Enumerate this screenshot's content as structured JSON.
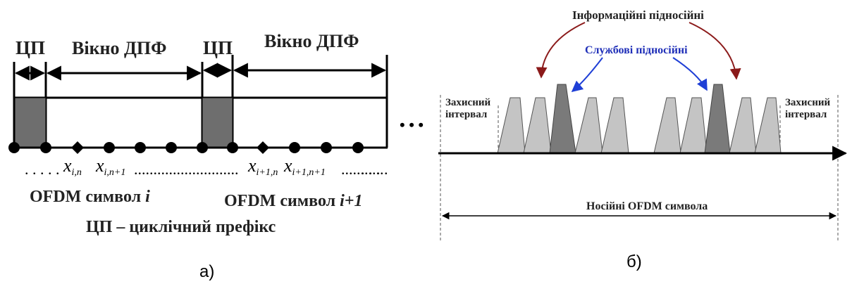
{
  "diagram_a": {
    "cp_label_1": "ЦП",
    "dft_window_label_1": "Вікно ДПФ",
    "cp_label_2": "ЦП",
    "dft_window_label_2": "Вікно ДПФ",
    "ellipsis": "• • •",
    "samples_row": {
      "dots_left": ". . . . .",
      "x_i_n_base": "x",
      "x_i_n_sub": "i,n",
      "x_i_n1_base": "x",
      "x_i_n1_sub": "i,n+1",
      "dots_mid": "...........................",
      "x_i1_n_base": "x",
      "x_i1_n_sub": "i+1,n",
      "x_i1_n1_base": "x",
      "x_i1_n1_sub": "i+1,n+1",
      "dots_right": "...........",
      "dots_end": ". . . ."
    },
    "symbol_i_prefix": "OFDM символ ",
    "symbol_i_index": "i",
    "symbol_i1_prefix": "OFDM символ ",
    "symbol_i1_index": "i+1",
    "cp_legend": "ЦП – циклічний префікс",
    "caption": "а)"
  },
  "diagram_b": {
    "info_subcarriers_label": "Інформаційні підносійні",
    "service_subcarriers_label": "Службові підносійні",
    "guard_left_line1": "Захисний",
    "guard_left_line2": "інтервал",
    "guard_right_line1": "Захисний",
    "guard_right_line2": "інтервал",
    "carriers_label": "Носійні OFDM символа",
    "caption": "б)"
  },
  "colors": {
    "cp_fill": "#6e6e6e",
    "info_subcarrier": "#c4c4c4",
    "service_subcarrier": "#7a7a7a",
    "red_arrow": "#8b1a1a",
    "blue_arrow": "#1f3fd6"
  }
}
